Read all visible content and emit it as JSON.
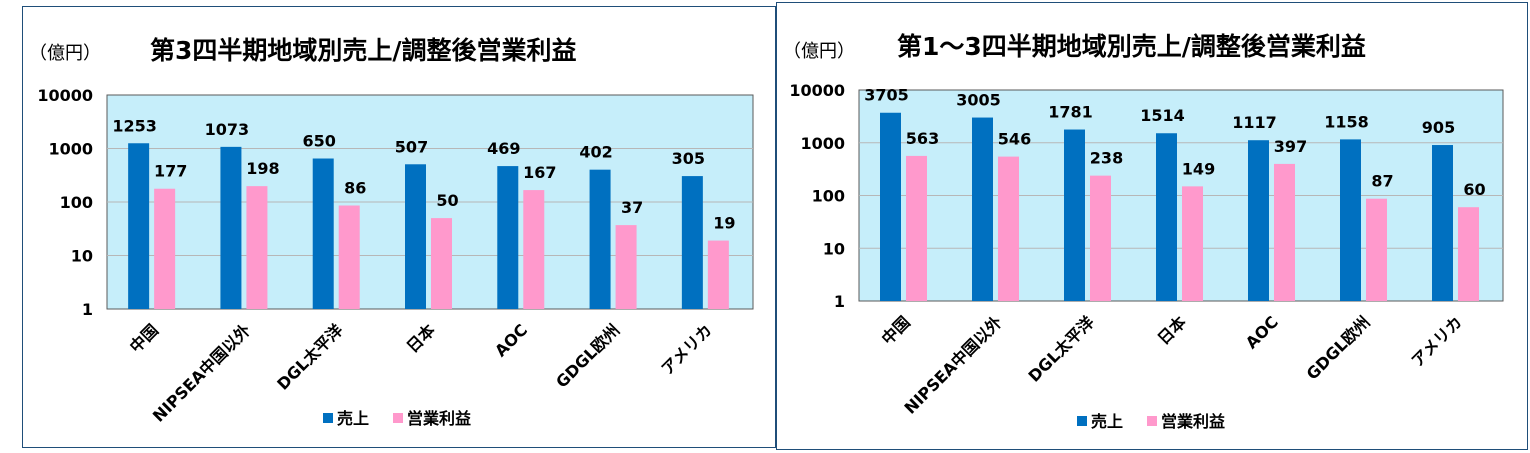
{
  "chart_data": [
    {
      "type": "bar",
      "title": "第3四半期地域別売上/調整後営業利益",
      "unit": "（億円）",
      "yscale": "log",
      "ylim": [
        1,
        10000
      ],
      "yticks": [
        "1",
        "10",
        "100",
        "1000",
        "10000"
      ],
      "grid": true,
      "legend_position": "bottom",
      "categories": [
        "中国",
        "NIPSEA中国以外",
        "DGL太平洋",
        "日本",
        "AOC",
        "GDGL欧州",
        "アメリカ"
      ],
      "series": [
        {
          "name": "売上",
          "color": "#0070c0",
          "values": [
            1253,
            1073,
            650,
            507,
            469,
            402,
            305
          ],
          "labels": [
            "1253",
            "1073",
            "650",
            "507",
            "469",
            "402",
            "305"
          ]
        },
        {
          "name": "営業利益",
          "color": "#ff99cc",
          "values": [
            177,
            198,
            86,
            50,
            167,
            37,
            19
          ],
          "labels": [
            "177",
            "198",
            "86",
            "50",
            "167",
            "37",
            "19"
          ]
        }
      ],
      "plot_bg": "#c6eefa"
    },
    {
      "type": "bar",
      "title": "第1～3四半期地域別売上/調整後営業利益",
      "unit": "（億円）",
      "yscale": "log",
      "ylim": [
        1,
        10000
      ],
      "yticks": [
        "1",
        "10",
        "100",
        "1000",
        "10000"
      ],
      "grid": true,
      "legend_position": "bottom",
      "categories": [
        "中国",
        "NIPSEA中国以外",
        "DGL太平洋",
        "日本",
        "AOC",
        "GDGL欧州",
        "アメリカ"
      ],
      "series": [
        {
          "name": "売上",
          "color": "#0070c0",
          "values": [
            3705,
            3005,
            1781,
            1514,
            1117,
            1158,
            905
          ],
          "labels": [
            "3705",
            "3005",
            "1781",
            "1514",
            "1117",
            "1158",
            "905"
          ]
        },
        {
          "name": "営業利益",
          "color": "#ff99cc",
          "values": [
            563,
            546,
            238,
            149,
            397,
            87,
            60
          ],
          "labels": [
            "563",
            "546",
            "238",
            "149",
            "397",
            "87",
            "60"
          ]
        }
      ],
      "plot_bg": "#c6eefa"
    }
  ]
}
